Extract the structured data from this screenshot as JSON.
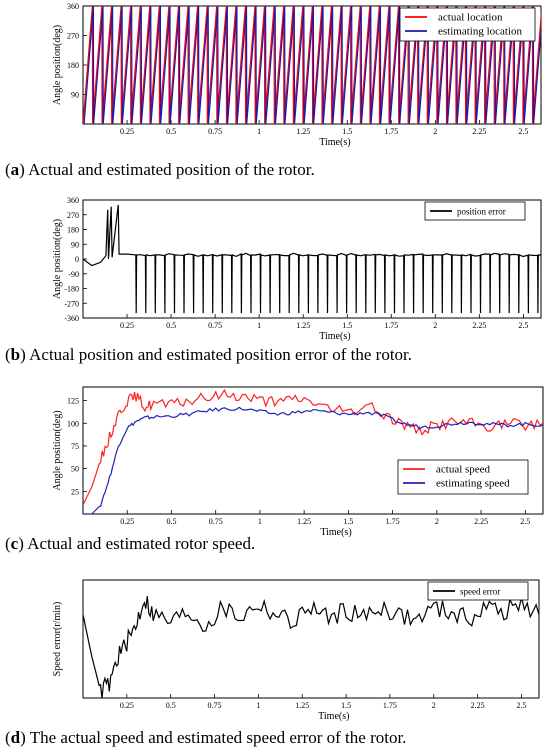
{
  "chart_data": [
    {
      "type": "line",
      "caption_letter": "a",
      "caption_text": "Actual and estimated position of the rotor.",
      "xlabel": "Time(s)",
      "ylabel": "Angle position(deg)",
      "xlim": [
        0,
        2.6
      ],
      "ylim": [
        0,
        360
      ],
      "xticks": [
        0.25,
        0.5,
        0.75,
        1,
        1.25,
        1.5,
        1.75,
        2,
        2.25,
        2.5
      ],
      "xtick_labels": [
        "0.25",
        "0.5",
        "0.75",
        "1",
        "1.25",
        "1.5",
        "1.75",
        "2",
        "2.25",
        "2.5"
      ],
      "yticks": [
        90,
        180,
        270,
        360
      ],
      "ytick_labels": [
        "90",
        "180",
        "270",
        "360"
      ],
      "grid": false,
      "legend_position": "top-right",
      "series": [
        {
          "name": "actual location",
          "color": "#ff0000",
          "shape": "sawtooth",
          "start": 0.0,
          "end": 2.6,
          "period": 0.0543,
          "min": 0,
          "max": 360
        },
        {
          "name": "estimating location",
          "color": "#1a1aaa",
          "shape": "sawtooth",
          "start": 0.0,
          "end": 2.6,
          "period": 0.0543,
          "min": 0,
          "max": 360
        }
      ]
    },
    {
      "type": "line",
      "caption_letter": "b",
      "caption_text": "Actual position and estimated position error of the rotor.",
      "xlabel": "Time(s)",
      "ylabel": "Angle position(deg)",
      "xlim": [
        0,
        2.6
      ],
      "ylim": [
        -360,
        360
      ],
      "xticks": [
        0.25,
        0.5,
        0.75,
        1,
        1.25,
        1.5,
        1.75,
        2,
        2.25,
        2.5
      ],
      "xtick_labels": [
        "0.25",
        "0.5",
        "0.75",
        "1",
        "1.25",
        "1.5",
        "1.75",
        "2",
        "2.25",
        "2.5"
      ],
      "yticks": [
        -360,
        -270,
        -180,
        -90,
        0,
        90,
        180,
        270,
        360
      ],
      "ytick_labels": [
        "-360",
        "-270",
        "-180",
        "-90",
        "0",
        "90",
        "180",
        "270",
        "360"
      ],
      "grid": false,
      "legend_position": "top-right",
      "series": [
        {
          "name": "position error",
          "color": "#000000",
          "shape": "error",
          "baseline": 25,
          "spike": -330,
          "period": 0.0543,
          "start_spikes": 0.3
        }
      ]
    },
    {
      "type": "line",
      "caption_letter": "c",
      "caption_text": "Actual and estimated rotor speed.",
      "xlabel": "Time(s)",
      "ylabel": "Angle position(deg)",
      "xlim": [
        0,
        2.6
      ],
      "ylim": [
        0,
        140
      ],
      "xticks": [
        0.25,
        0.5,
        0.75,
        1,
        1.25,
        1.5,
        1.75,
        2,
        2.25,
        2.5
      ],
      "xtick_labels": [
        "0.25",
        "0.5",
        "0.75",
        "1",
        "1.25",
        "1.5",
        "1.75",
        "2",
        "2.25",
        "2.5"
      ],
      "yticks": [
        25,
        50,
        75,
        100,
        125
      ],
      "ytick_labels": [
        "25",
        "50",
        "75",
        "100",
        "125"
      ],
      "grid": false,
      "legend_position": "lower-right",
      "series": [
        {
          "name": "actual speed",
          "color": "#ff2020",
          "x": [
            0,
            0.05,
            0.1,
            0.15,
            0.2,
            0.25,
            0.3,
            0.35,
            0.4,
            0.5,
            0.6,
            0.7,
            0.8,
            0.9,
            1.0,
            1.1,
            1.2,
            1.3,
            1.4,
            1.5,
            1.6,
            1.7,
            1.8,
            1.9,
            2.0,
            2.1,
            2.2,
            2.3,
            2.4,
            2.5,
            2.6
          ],
          "y": [
            10,
            30,
            60,
            85,
            110,
            125,
            130,
            118,
            122,
            120,
            125,
            128,
            132,
            130,
            126,
            122,
            128,
            124,
            115,
            112,
            120,
            110,
            100,
            92,
            98,
            102,
            100,
            96,
            100,
            98,
            100
          ]
        },
        {
          "name": "estimating speed",
          "color": "#2020c0",
          "x": [
            0,
            0.05,
            0.1,
            0.15,
            0.2,
            0.25,
            0.3,
            0.35,
            0.4,
            0.5,
            0.6,
            0.7,
            0.8,
            0.9,
            1.0,
            1.1,
            1.2,
            1.3,
            1.4,
            1.5,
            1.6,
            1.7,
            1.8,
            1.9,
            2.0,
            2.1,
            2.2,
            2.3,
            2.4,
            2.5,
            2.6
          ],
          "y": [
            0,
            0,
            10,
            40,
            75,
            95,
            102,
            106,
            107,
            108,
            110,
            114,
            116,
            116,
            113,
            110,
            112,
            114,
            112,
            110,
            112,
            108,
            100,
            96,
            97,
            100,
            101,
            99,
            98,
            99,
            98
          ]
        }
      ]
    },
    {
      "type": "line",
      "caption_letter": "d",
      "caption_text": "The actual speed and estimated speed error of the rotor.",
      "xlabel": "Time(s)",
      "ylabel": "Speed error(r/min)",
      "xlim": [
        0,
        2.6
      ],
      "ylim": [
        -60,
        25
      ],
      "xticks": [
        0.25,
        0.5,
        0.75,
        1,
        1.25,
        1.5,
        1.75,
        2,
        2.25,
        2.5
      ],
      "xtick_labels": [
        "0.25",
        "0.5",
        "0.75",
        "1",
        "1.25",
        "1.5",
        "1.75",
        "2",
        "2.25",
        "2.5"
      ],
      "yticks": [],
      "ytick_labels": [],
      "grid": false,
      "legend_position": "top-right",
      "series": [
        {
          "name": "speed error",
          "color": "#000000",
          "x": [
            0,
            0.05,
            0.1,
            0.15,
            0.2,
            0.25,
            0.3,
            0.35,
            0.4,
            0.5,
            0.6,
            0.7,
            0.8,
            0.9,
            1.0,
            1.1,
            1.2,
            1.3,
            1.4,
            1.5,
            1.6,
            1.7,
            1.8,
            1.9,
            2.0,
            2.1,
            2.2,
            2.3,
            2.4,
            2.5,
            2.6
          ],
          "y": [
            0,
            -30,
            -55,
            -50,
            -30,
            -20,
            -8,
            12,
            0,
            -5,
            2,
            -8,
            5,
            -2,
            8,
            0,
            -5,
            6,
            -3,
            4,
            -2,
            6,
            0,
            -4,
            5,
            2,
            -3,
            6,
            2,
            8,
            0
          ]
        }
      ]
    }
  ]
}
